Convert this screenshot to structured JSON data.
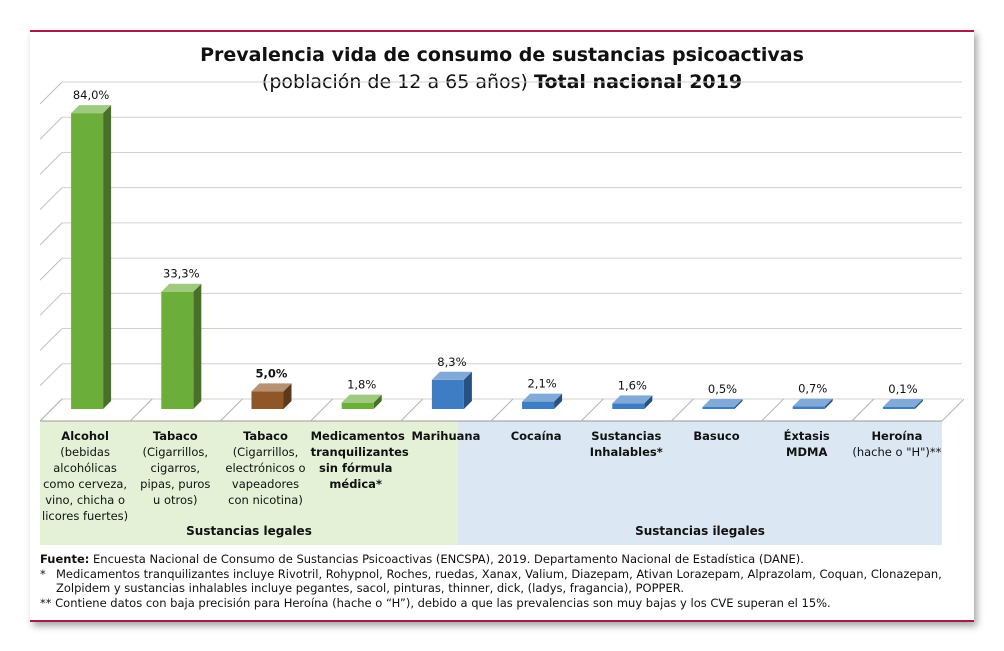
{
  "chart_data": {
    "type": "bar",
    "title": "Prevalencia vida de consumo de sustancias psicoactivas",
    "subtitle": "(población de 12 a 65 años)",
    "subtitle_bold": "Total nacional 2019",
    "ylim": [
      0,
      90
    ],
    "grid": true,
    "categories": [
      {
        "name": "Alcohol",
        "detail": [
          "(bebidas",
          "alcohólicas",
          "como cerveza,",
          "vino, chicha o",
          "licores fuertes)"
        ],
        "group": "legal"
      },
      {
        "name": "Tabaco",
        "detail": [
          "(Cigarrillos,",
          "cigarros,",
          "pipas, puros",
          "u otros)"
        ],
        "group": "legal"
      },
      {
        "name": "Tabaco",
        "detail": [
          "(Cigarrillos,",
          "electrónicos o",
          "vapeadores",
          "con nicotina)"
        ],
        "group": "legal"
      },
      {
        "name": "Medicamentos",
        "detail": [
          "tranquilizantes",
          "sin fórmula",
          "médica*"
        ],
        "bold_detail": true,
        "group": "legal"
      },
      {
        "name": "Marihuana",
        "detail": [],
        "group": "illegal"
      },
      {
        "name": "Cocaína",
        "detail": [],
        "group": "illegal"
      },
      {
        "name": "Sustancias",
        "detail": [
          "Inhalables*"
        ],
        "bold_detail": true,
        "group": "illegal"
      },
      {
        "name": "Basuco",
        "detail": [],
        "group": "illegal"
      },
      {
        "name": "Éxtasis",
        "detail": [
          "MDMA"
        ],
        "bold_detail": true,
        "group": "illegal"
      },
      {
        "name": "Heroína",
        "detail": [
          "(hache o \"H\")**"
        ],
        "group": "illegal"
      }
    ],
    "values": [
      84.0,
      33.3,
      5.0,
      1.8,
      8.3,
      2.1,
      1.6,
      0.5,
      0.7,
      0.1
    ],
    "data_labels": [
      "84,0%",
      "33,3%",
      "5,0%",
      "1,8%",
      "8,3%",
      "2,1%",
      "1,6%",
      "0,5%",
      "0,7%",
      "0,1%"
    ],
    "bar_colors": [
      "#6cae3a",
      "#6cae3a",
      "#8f5628",
      "#6cae3a",
      "#3e7cc4",
      "#3e7cc4",
      "#3e7cc4",
      "#3e7cc4",
      "#3e7cc4",
      "#3e7cc4"
    ],
    "groups": [
      {
        "id": "legal",
        "label": "Sustancias legales",
        "color": "#e4f1d7"
      },
      {
        "id": "illegal",
        "label": "Sustancias ilegales",
        "color": "#dce7f4"
      }
    ]
  },
  "footnotes": {
    "source_label": "Fuente:",
    "source_text": "Encuesta Nacional de Consumo de Sustancias Psicoactivas (ENCSPA), 2019. Departamento Nacional de Estadística (DANE).",
    "note1_mark": "*",
    "note1_text": "Medicamentos tranquilizantes incluye Rivotril, Rohypnol, Roches, ruedas, Xanax, Valium, Diazepam, Ativan Lorazepam, Alprazolam, Coquan, Clonazepan, Zolpidem y sustancias inhalables incluye pegantes, sacol, pinturas, thinner, dick, (ladys, fragancia), POPPER.",
    "note2_mark": "**",
    "note2_text": "Contiene datos con baja precisión para Heroína (hache o “H”), debido a que las prevalencias son muy bajas y los CVE superan el 15%."
  }
}
